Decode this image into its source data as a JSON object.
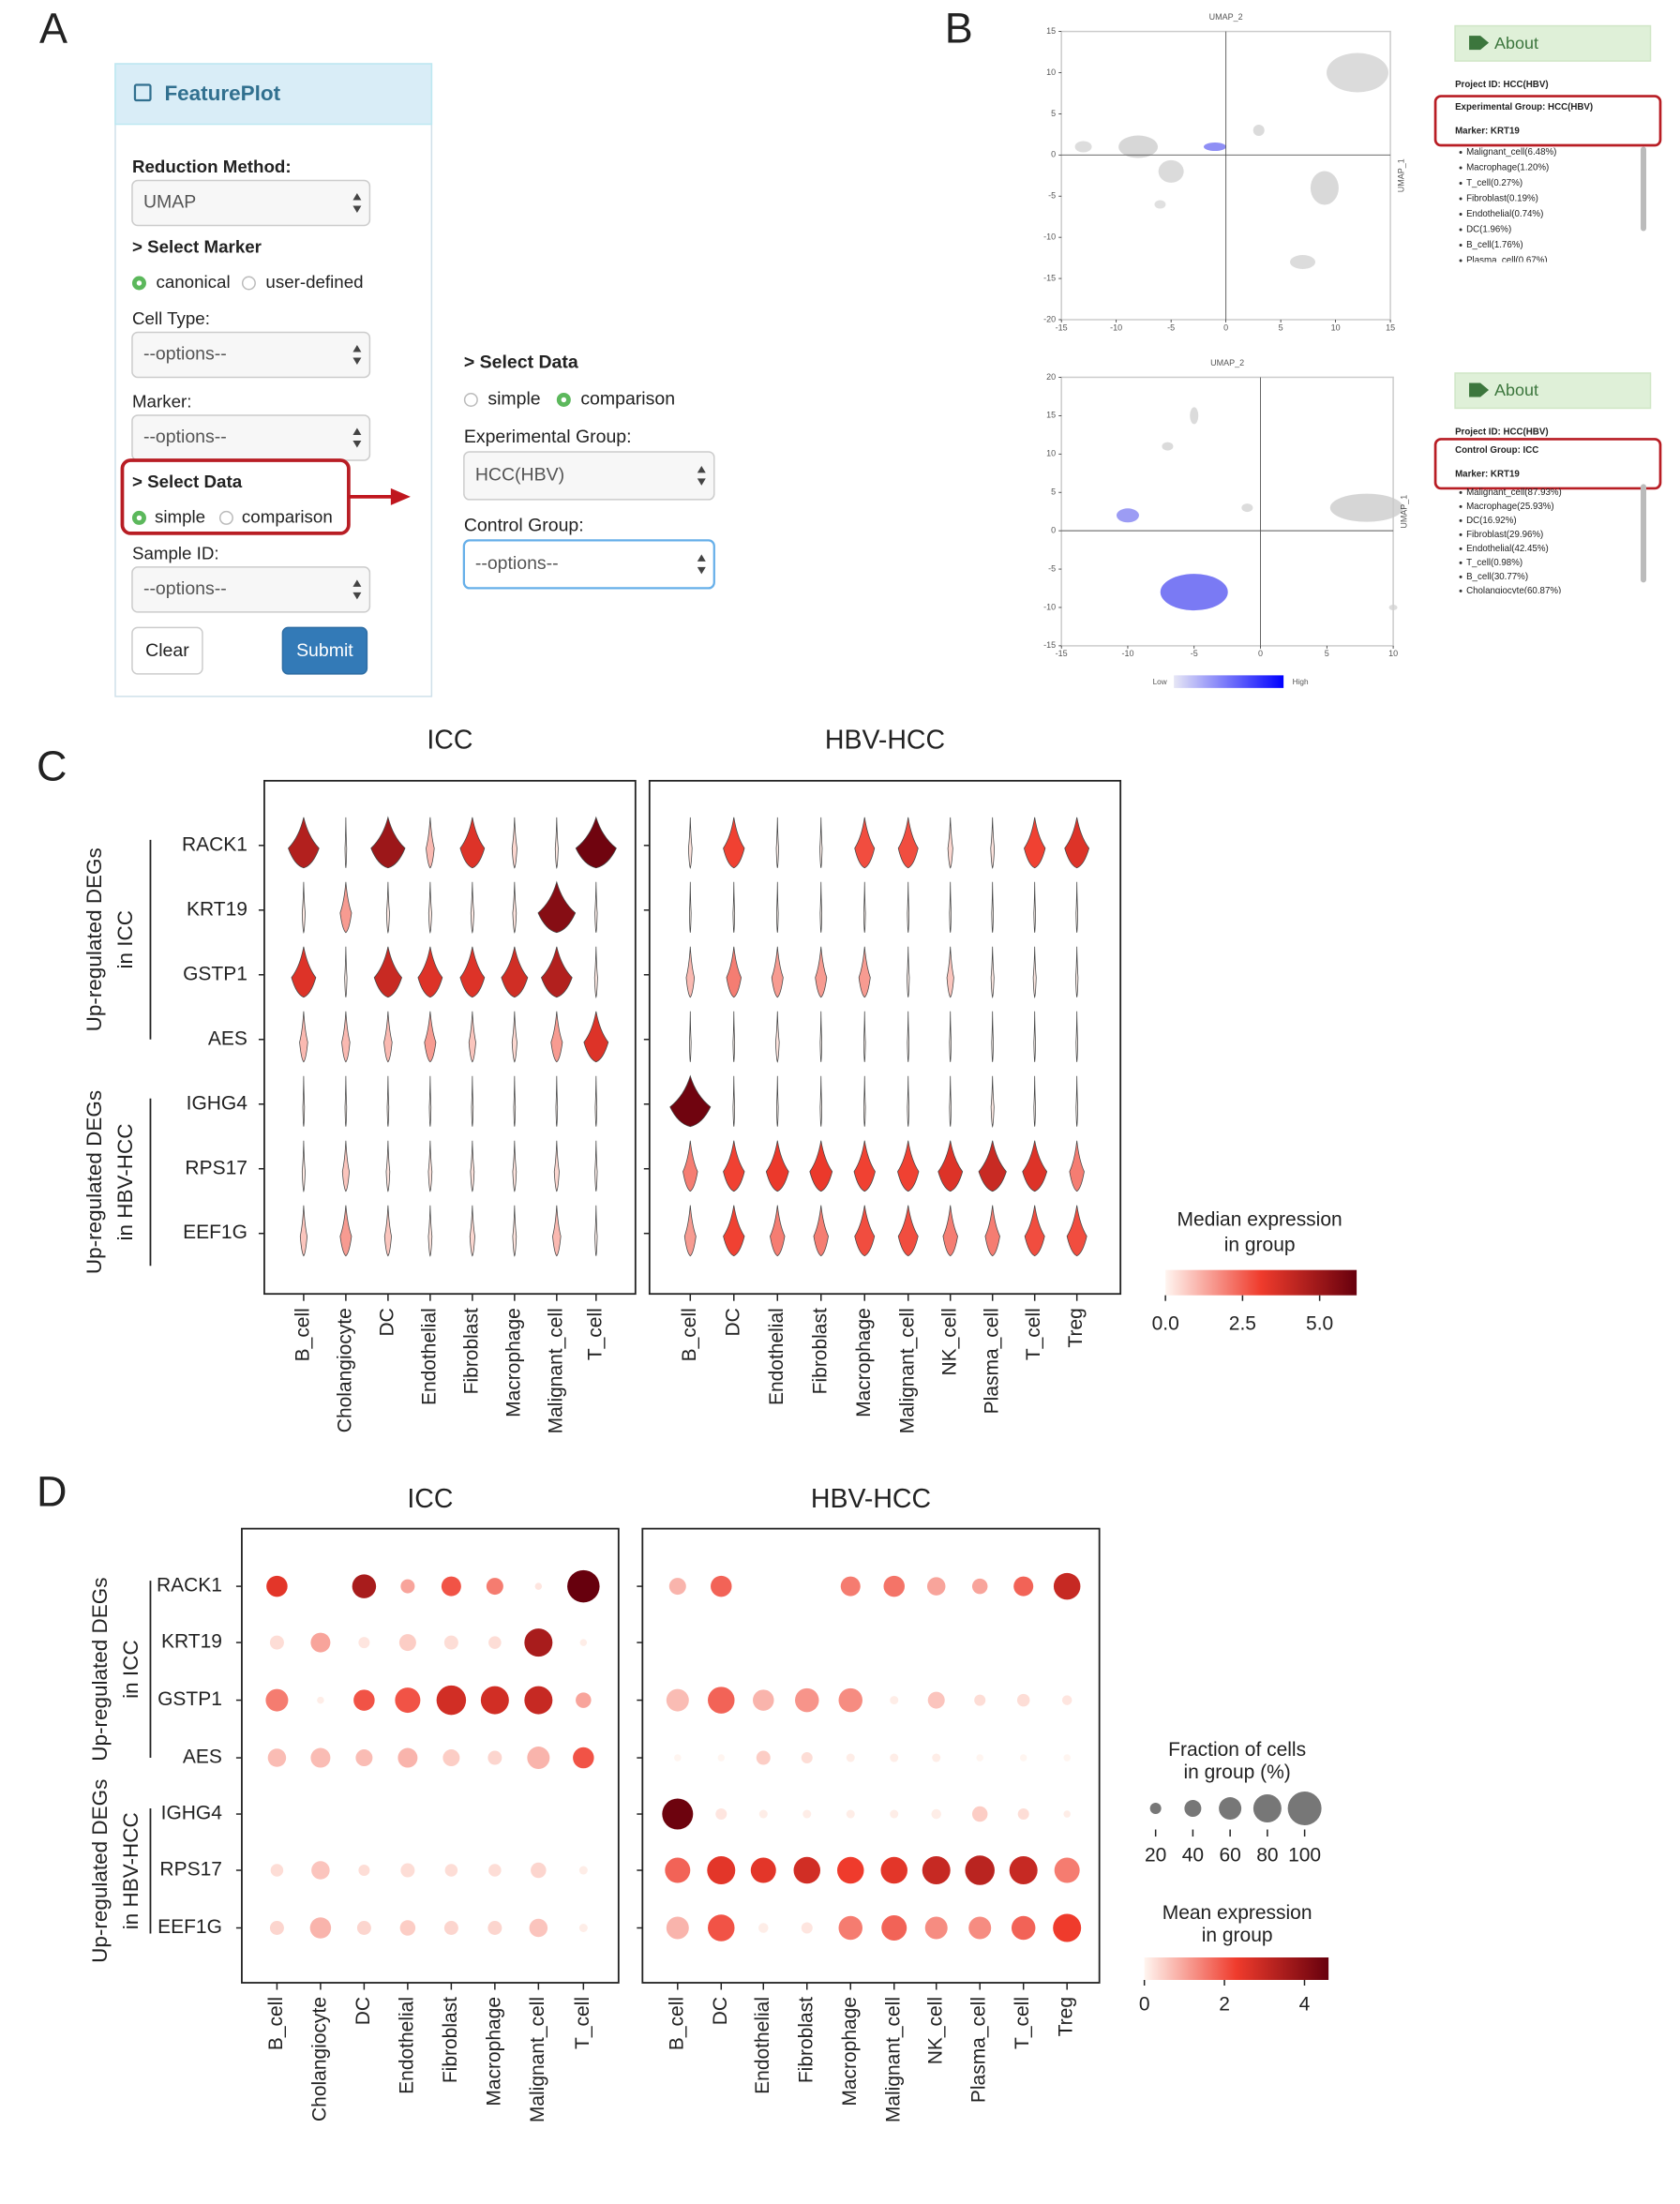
{
  "panel_a": {
    "label": "A",
    "header": "FeaturePlot",
    "reduction_label": "Reduction Method:",
    "reduction_value": "UMAP",
    "select_marker": "> Select Marker",
    "marker_options": [
      "canonical",
      "user-defined"
    ],
    "cell_type_label": "Cell Type:",
    "cell_type_value": "--options--",
    "marker_label": "Marker:",
    "marker_value": "--options--",
    "select_data": "> Select Data",
    "data_options": [
      "simple",
      "comparison"
    ],
    "sample_label": "Sample ID:",
    "sample_value": "--options--",
    "clear": "Clear",
    "submit": "Submit",
    "detail": {
      "select_data": "> Select Data",
      "data_options": [
        "simple",
        "comparison"
      ],
      "experimental_label": "Experimental Group:",
      "experimental_value": "HCC(HBV)",
      "control_label": "Control Group:",
      "control_value": "--options--"
    }
  },
  "panel_b": {
    "label": "B",
    "top": {
      "x_label": "UMAP_1",
      "y_label": "UMAP_2",
      "xlim": [
        -15,
        15
      ],
      "ylim": [
        -20,
        15
      ],
      "xticks": [
        -15,
        -10,
        -5,
        0,
        5,
        10,
        15
      ],
      "yticks": [
        15,
        10,
        5,
        0,
        -5,
        -10,
        -15,
        -20
      ],
      "about": "About",
      "project": "Project ID:  HCC(HBV)",
      "group": "Experimental Group:  HCC(HBV)",
      "marker": "Marker:  KRT19",
      "items": [
        "Malignant_cell(6.48%)",
        "Macrophage(1.20%)",
        "T_cell(0.27%)",
        "Fibroblast(0.19%)",
        "Endothelial(0.74%)",
        "DC(1.96%)",
        "B_cell(1.76%)",
        "Plasma_cell(0.67%)"
      ]
    },
    "bottom": {
      "x_label": "UMAP_1",
      "y_label": "UMAP_2",
      "xlim": [
        -15,
        10
      ],
      "ylim": [
        -15,
        20
      ],
      "xticks": [
        -15,
        -10,
        -5,
        0,
        5,
        10
      ],
      "yticks": [
        20,
        15,
        10,
        5,
        0,
        -5,
        -10,
        -15
      ],
      "about": "About",
      "project": "Project ID:  HCC(HBV)",
      "group": "Control Group:  ICC",
      "marker": "Marker:  KRT19",
      "items": [
        "Malignant_cell(87.93%)",
        "Macrophage(25.93%)",
        "DC(16.92%)",
        "Fibroblast(29.96%)",
        "Endothelial(42.45%)",
        "T_cell(0.98%)",
        "B_cell(30.77%)",
        "Cholangiocyte(60.87%)"
      ],
      "low": "Low",
      "high": "High"
    }
  },
  "panel_c": {
    "label": "C",
    "genes": [
      "RACK1",
      "KRT19",
      "GSTP1",
      "AES",
      "IGHG4",
      "RPS17",
      "EEF1G"
    ],
    "groups": [
      [
        "Up-regulated DEGs",
        "in ICC"
      ],
      [
        "Up-regulated DEGs",
        "in HBV-HCC"
      ]
    ],
    "icc": {
      "title": "ICC",
      "categories": [
        "B_cell",
        "Cholangiocyte",
        "DC",
        "Endothelial",
        "Fibroblast",
        "Macrophage",
        "Malignant_cell",
        "T_cell"
      ],
      "values": [
        [
          4.5,
          0,
          5,
          1,
          3.5,
          0.5,
          0.2,
          6
        ],
        [
          0.2,
          1.5,
          0.2,
          0.2,
          0.2,
          0.3,
          5.5,
          0.1
        ],
        [
          3.5,
          0.1,
          4,
          3.5,
          3.5,
          3.8,
          4.5,
          0.2
        ],
        [
          1,
          1,
          1,
          1.5,
          0.8,
          0.5,
          1.5,
          3.5
        ],
        [
          0,
          0,
          0,
          0,
          0,
          0,
          0,
          0
        ],
        [
          0.2,
          0.8,
          0.3,
          0.3,
          0.3,
          0.3,
          0.5,
          0.1
        ],
        [
          0.8,
          1.5,
          0.8,
          0.3,
          0.5,
          0.3,
          1,
          0.1
        ]
      ]
    },
    "hbv": {
      "title": "HBV-HCC",
      "categories": [
        "B_cell",
        "DC",
        "Endothelial",
        "Fibroblast",
        "Macrophage",
        "Malignant_cell",
        "NK_cell",
        "Plasma_cell",
        "T_cell",
        "Treg"
      ],
      "values": [
        [
          0.3,
          3,
          0.1,
          0.1,
          2.8,
          2.8,
          0.5,
          0.3,
          3,
          3.5
        ],
        [
          0,
          0,
          0,
          0,
          0,
          0,
          0,
          0,
          0,
          0
        ],
        [
          1,
          2,
          1.5,
          1.5,
          1.5,
          0.1,
          0.8,
          0.2,
          0.2,
          0.1
        ],
        [
          0,
          0,
          0.3,
          0,
          0,
          0,
          0,
          0,
          0,
          0
        ],
        [
          6,
          0,
          0,
          0,
          0,
          0,
          0,
          0.2,
          0,
          0
        ],
        [
          2,
          3,
          3.2,
          3.2,
          3,
          3,
          3.5,
          4,
          3.5,
          2
        ],
        [
          1.5,
          3,
          2,
          2,
          2.8,
          2.8,
          2,
          2,
          2.8,
          2.8
        ]
      ]
    },
    "colorbar_title": [
      "Median expression",
      "in group"
    ],
    "clim": [
      0,
      6.2
    ],
    "cticks": [
      {
        "value": 0,
        "label": "0.0"
      },
      {
        "value": 2.5,
        "label": "2.5"
      },
      {
        "value": 5,
        "label": "5.0"
      }
    ]
  },
  "panel_d": {
    "label": "D",
    "genes": [
      "RACK1",
      "KRT19",
      "GSTP1",
      "AES",
      "IGHG4",
      "RPS17",
      "EEF1G"
    ],
    "groups": [
      [
        "Up-regulated DEGs",
        "in ICC"
      ],
      [
        "Up-regulated DEGs",
        "in HBV-HCC"
      ]
    ],
    "icc": {
      "title": "ICC",
      "categories": [
        "B_cell",
        "Cholangiocyte",
        "DC",
        "Endothelial",
        "Fibroblast",
        "Macrophage",
        "Malignant_cell",
        "T_cell"
      ],
      "fraction": [
        [
          55,
          0,
          65,
          30,
          50,
          40,
          5,
          95
        ],
        [
          30,
          50,
          20,
          40,
          30,
          25,
          80,
          5
        ],
        [
          60,
          5,
          55,
          70,
          85,
          80,
          80,
          35
        ],
        [
          45,
          50,
          40,
          50,
          40,
          30,
          60,
          55
        ],
        [
          0,
          0,
          0,
          0,
          0,
          0,
          0,
          0
        ],
        [
          25,
          45,
          20,
          30,
          25,
          25,
          35,
          10
        ],
        [
          30,
          55,
          30,
          35,
          30,
          30,
          45,
          10
        ]
      ],
      "mean": [
        [
          2.5,
          0,
          3.5,
          1,
          2,
          1.5,
          0.2,
          4.6
        ],
        [
          0.3,
          1,
          0.2,
          0.5,
          0.3,
          0.3,
          3.5,
          0.1
        ],
        [
          1.5,
          0.1,
          2,
          2,
          2.8,
          2.8,
          3,
          1
        ],
        [
          0.7,
          0.7,
          0.7,
          0.8,
          0.5,
          0.4,
          0.8,
          2
        ],
        [
          0,
          0,
          0,
          0,
          0,
          0,
          0,
          0
        ],
        [
          0.3,
          0.6,
          0.3,
          0.3,
          0.3,
          0.3,
          0.4,
          0.1
        ],
        [
          0.4,
          0.8,
          0.4,
          0.5,
          0.4,
          0.4,
          0.6,
          0.1
        ]
      ]
    },
    "hbv": {
      "title": "HBV-HCC",
      "categories": [
        "B_cell",
        "DC",
        "Endothelial",
        "Fibroblast",
        "Macrophage",
        "Malignant_cell",
        "NK_cell",
        "Plasma_cell",
        "T_cell",
        "Treg"
      ],
      "fraction": [
        [
          40,
          55,
          0,
          0,
          50,
          55,
          45,
          35,
          50,
          75
        ],
        [
          0,
          0,
          0,
          0,
          0,
          0,
          0,
          0,
          0,
          0
        ],
        [
          60,
          75,
          55,
          65,
          65,
          10,
          40,
          20,
          25,
          15
        ],
        [
          5,
          5,
          30,
          20,
          10,
          10,
          10,
          5,
          5,
          5
        ],
        [
          90,
          20,
          10,
          10,
          10,
          10,
          15,
          35,
          20,
          5
        ],
        [
          70,
          80,
          70,
          75,
          75,
          75,
          80,
          85,
          80,
          70
        ],
        [
          60,
          75,
          15,
          20,
          65,
          70,
          60,
          60,
          65,
          80
        ]
      ],
      "mean": [
        [
          0.8,
          1.8,
          0,
          0,
          1.5,
          1.6,
          1,
          1,
          1.8,
          3
        ],
        [
          0,
          0,
          0,
          0,
          0,
          0,
          0,
          0,
          0,
          0
        ],
        [
          0.7,
          1.8,
          0.8,
          1.2,
          1.3,
          0.1,
          0.6,
          0.3,
          0.3,
          0.2
        ],
        [
          0,
          0,
          0.5,
          0.3,
          0.1,
          0.1,
          0.1,
          0,
          0,
          0
        ],
        [
          4.5,
          0.2,
          0.1,
          0.1,
          0.1,
          0.1,
          0.1,
          0.5,
          0.3,
          0.1
        ],
        [
          1.8,
          2.5,
          2.5,
          2.8,
          2.3,
          2.5,
          3,
          3.2,
          3,
          1.5
        ],
        [
          0.8,
          2,
          0.1,
          0.2,
          1.5,
          1.8,
          1.3,
          1.3,
          1.8,
          2.3
        ]
      ]
    },
    "size_title": [
      "Fraction of cells",
      "in group (%)"
    ],
    "size_ticks": [
      20,
      40,
      60,
      80,
      100
    ],
    "color_title": [
      "Mean expression",
      "in group"
    ],
    "clim": [
      0,
      4.6
    ],
    "cticks": [
      0,
      2,
      4
    ]
  }
}
